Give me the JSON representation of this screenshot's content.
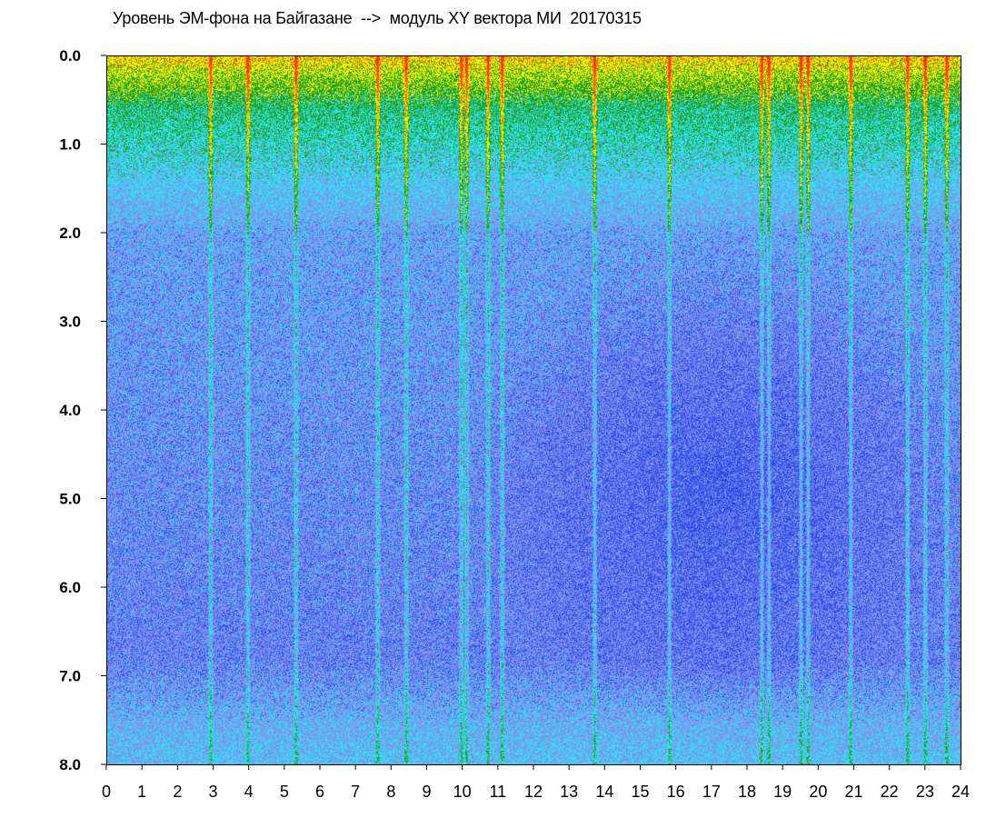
{
  "chart_data": {
    "type": "heatmap",
    "title": "Уровень ЭМ-фона на Байгазане  -->  модуль XY вектора МИ  20170315",
    "xlabel": "",
    "ylabel": "",
    "x_range": [
      0,
      24
    ],
    "y_range": [
      0.0,
      8.0
    ],
    "y_inverted": true,
    "x_ticks": [
      0,
      1,
      2,
      3,
      4,
      5,
      6,
      7,
      8,
      9,
      10,
      11,
      12,
      13,
      14,
      15,
      16,
      17,
      18,
      19,
      20,
      21,
      22,
      23,
      24
    ],
    "x_tick_labels": [
      "0",
      "1",
      "2",
      "3",
      "4",
      "5",
      "6",
      "7",
      "8",
      "9",
      "10",
      "11",
      "12",
      "13",
      "14",
      "15",
      "16",
      "17",
      "18",
      "19",
      "20",
      "21",
      "22",
      "23",
      "24"
    ],
    "y_ticks": [
      0,
      1,
      2,
      3,
      4,
      5,
      6,
      7,
      8
    ],
    "y_tick_labels": [
      "0.0",
      "1.0",
      "2.0",
      "3.0",
      "4.0",
      "5.0",
      "6.0",
      "7.0",
      "8.0"
    ],
    "grid": false,
    "colormap": [
      "#1020d0",
      "#3050e8",
      "#8090f0",
      "#30e0f0",
      "#20a020",
      "#f0f000",
      "#ff6000",
      "#ff2020"
    ],
    "intensity_description_levels": {
      "high_band_y_range": [
        0.0,
        0.6
      ],
      "transition_band_y_range": [
        0.6,
        2.0
      ]
    },
    "vertical_streaks_x": [
      2.9,
      3.95,
      5.3,
      7.6,
      8.4,
      9.95,
      10.1,
      10.7,
      11.1,
      13.7,
      15.8,
      18.4,
      18.6,
      19.5,
      19.7,
      20.9,
      22.5,
      23.0,
      23.6
    ]
  }
}
